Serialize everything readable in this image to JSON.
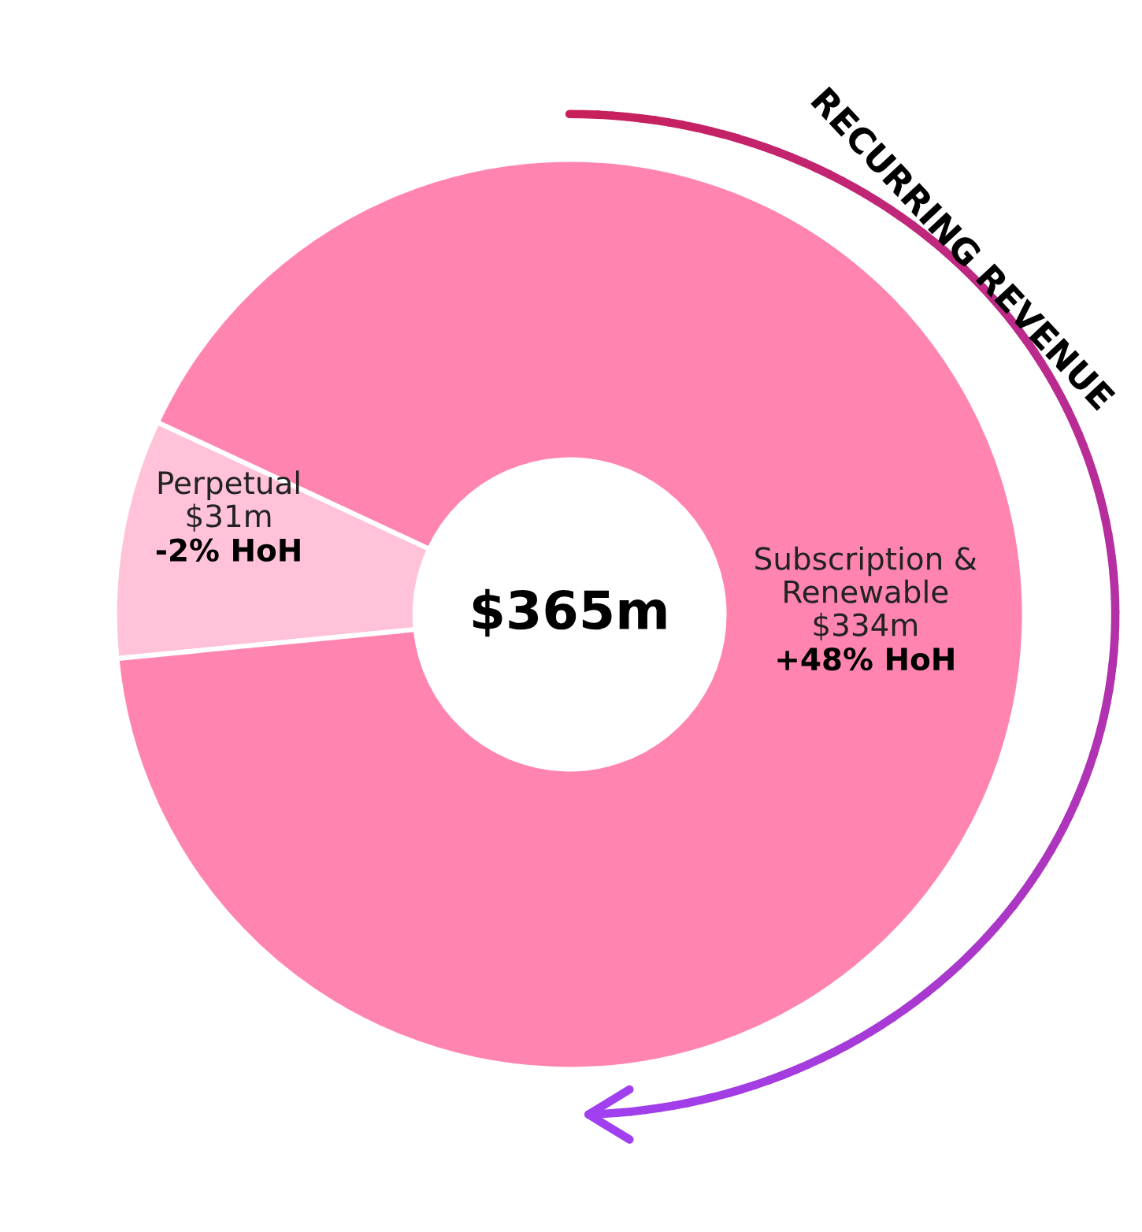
{
  "chart_data": {
    "type": "donut",
    "categories": [
      "Perpetual",
      "Subscription &\nRenewable"
    ],
    "values": [
      31,
      334
    ],
    "colors": [
      "#ffc2d9",
      "#ff85b0"
    ],
    "value_labels": [
      "$31m",
      "$334m"
    ],
    "annotations": [
      "$365m",
      "-2% HoH",
      "+48% HoH",
      "RECURRING REVENUE"
    ]
  }
}
